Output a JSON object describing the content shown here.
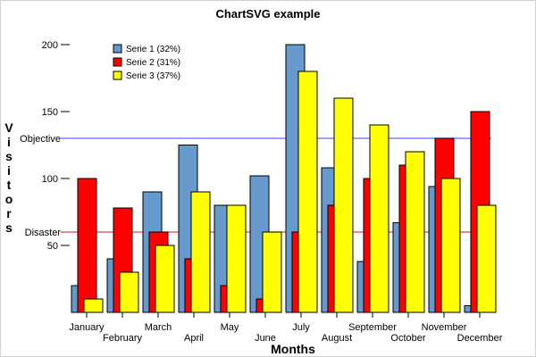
{
  "chart_data": {
    "type": "bar",
    "title": "ChartSVG example",
    "xlabel": "Months",
    "ylabel": "Visitors",
    "categories": [
      "January",
      "February",
      "March",
      "April",
      "May",
      "June",
      "July",
      "August",
      "September",
      "October",
      "November",
      "December"
    ],
    "series": [
      {
        "name": "Serie 1 (32%)",
        "color": "#6699cc",
        "values": [
          20,
          40,
          90,
          125,
          80,
          102,
          200,
          108,
          38,
          67,
          94,
          5
        ]
      },
      {
        "name": "Serie 2 (31%)",
        "color": "#ff0000",
        "values": [
          100,
          78,
          60,
          40,
          20,
          10,
          60,
          80,
          100,
          110,
          130,
          150
        ]
      },
      {
        "name": "Serie 3 (37%)",
        "color": "#ffff00",
        "values": [
          10,
          30,
          50,
          90,
          80,
          60,
          180,
          160,
          140,
          120,
          100,
          80
        ]
      }
    ],
    "y_ticks": [
      50,
      100,
      150,
      200
    ],
    "ylim": [
      0,
      200
    ],
    "reference_lines": [
      {
        "label": "Objective",
        "value": 130,
        "color": "#6666ff"
      },
      {
        "label": "Disaster",
        "value": 60,
        "color": "#dd4444"
      }
    ],
    "legend_position": "top-left",
    "grid": false
  }
}
